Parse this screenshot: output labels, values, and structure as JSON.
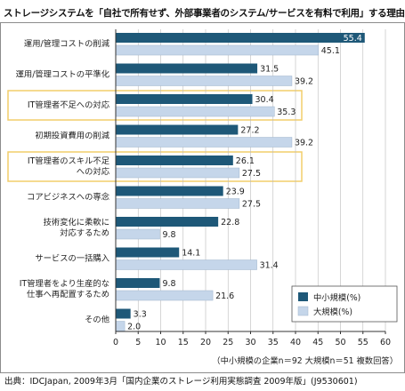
{
  "title": "ストレージシステムを「自社で所有せず、外部事業者のシステム/サービスを有料で利用」する理由",
  "footnote": "（中小規模の企業n＝92 大規模n＝51 複数回答）",
  "source": "出典：IDCJapan, 2009年3月「国内企業のストレージ利用実態調査 2009年版」(J9530601)",
  "colors": {
    "small": "#1e5878",
    "large": "#c5d6ea",
    "highlight_border": "#f2cd6a",
    "gridline": "#bbbbbb"
  },
  "chart_data": {
    "type": "bar",
    "orientation": "horizontal",
    "categories": [
      "運用/管理コストの削減",
      "運用/管理コストの平準化",
      "IT管理者不足への対応",
      "初期投資費用の削減",
      "IT管理者のスキル不足\nへの対応",
      "コアビジネスへの専念",
      "技術変化に柔軟に\n対応するため",
      "サービスの一括購入",
      "IT管理者をより生産的な\n仕事へ再配置するため",
      "その他"
    ],
    "series": [
      {
        "name": "中小規模(%)",
        "values": [
          55.4,
          31.5,
          30.4,
          27.2,
          26.1,
          23.9,
          22.8,
          14.1,
          9.8,
          3.3
        ]
      },
      {
        "name": "大規模(%)",
        "values": [
          45.1,
          39.2,
          35.3,
          39.2,
          27.5,
          27.5,
          9.8,
          31.4,
          21.6,
          2.0
        ]
      }
    ],
    "highlighted_categories": [
      2,
      4
    ],
    "xlim": [
      0,
      60
    ],
    "xticks": [
      0,
      5,
      10,
      15,
      20,
      25,
      30,
      35,
      40,
      45,
      50,
      55,
      60
    ],
    "grid": "vertical",
    "legend_position": "bottom-right",
    "data_labels": true
  }
}
